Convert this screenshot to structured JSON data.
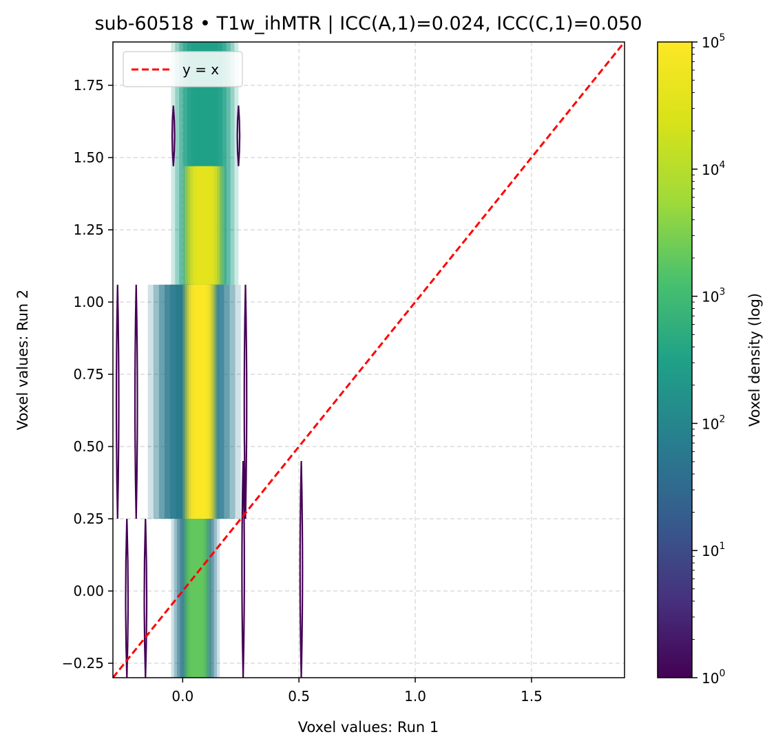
{
  "chart_data": {
    "type": "heatmap",
    "title": "sub-60518 • T1w_ihMTR | ICC(A,1)=0.024, ICC(C,1)=0.050",
    "xlabel": "Voxel values: Run 1",
    "ylabel": "Voxel values: Run 2",
    "xlim": [
      -0.3,
      1.9
    ],
    "ylim": [
      -0.3,
      1.9
    ],
    "x_ticks": [
      0.0,
      0.5,
      1.0,
      1.5
    ],
    "x_tick_labels": [
      "0.0",
      "0.5",
      "1.0",
      "1.5"
    ],
    "y_ticks": [
      -0.25,
      0.0,
      0.25,
      0.5,
      0.75,
      1.0,
      1.25,
      1.5,
      1.75
    ],
    "y_tick_labels": [
      "−0.25",
      "0.00",
      "0.25",
      "0.50",
      "0.75",
      "1.00",
      "1.25",
      "1.50",
      "1.75"
    ],
    "grid": true,
    "reference_line": {
      "label": "y = x",
      "color": "#ff0000",
      "style": "dashed"
    },
    "legend": {
      "placement": "top-left",
      "entries": [
        "y = x"
      ]
    },
    "colorbar": {
      "label": "Voxel density (log)",
      "scale": "log",
      "range": [
        1,
        100000
      ],
      "ticks": [
        {
          "base": "10",
          "exp": "0"
        },
        {
          "base": "10",
          "exp": "1"
        },
        {
          "base": "10",
          "exp": "2"
        },
        {
          "base": "10",
          "exp": "3"
        },
        {
          "base": "10",
          "exp": "4"
        },
        {
          "base": "10",
          "exp": "5"
        }
      ],
      "colormap": "viridis"
    },
    "density_bands": [
      {
        "x": [
          -0.05,
          0.24
        ],
        "y": [
          1.06,
          1.9
        ],
        "density": 300
      },
      {
        "x": [
          0.0,
          0.18
        ],
        "y": [
          1.06,
          1.47
        ],
        "density": 40000
      },
      {
        "x": [
          -0.15,
          0.25
        ],
        "y": [
          0.25,
          1.06
        ],
        "density": 60
      },
      {
        "x": [
          0.0,
          0.15
        ],
        "y": [
          0.25,
          1.06
        ],
        "density": 90000
      },
      {
        "x": [
          -0.05,
          0.16
        ],
        "y": [
          -0.3,
          0.25
        ],
        "density": 50
      },
      {
        "x": [
          0.0,
          0.12
        ],
        "y": [
          -0.3,
          0.25
        ],
        "density": 2000
      }
    ],
    "outlier_spikes": [
      {
        "x": -0.28,
        "y": [
          0.25,
          1.06
        ],
        "density": 1
      },
      {
        "x": -0.24,
        "y": [
          -0.3,
          0.25
        ],
        "density": 1
      },
      {
        "x": -0.2,
        "y": [
          0.25,
          1.06
        ],
        "density": 1
      },
      {
        "x": -0.16,
        "y": [
          -0.3,
          0.25
        ],
        "density": 1
      },
      {
        "x": 0.27,
        "y": [
          0.25,
          1.06
        ],
        "density": 1
      },
      {
        "x": 0.26,
        "y": [
          -0.3,
          0.45
        ],
        "density": 1
      },
      {
        "x": 0.51,
        "y": [
          -0.3,
          0.45
        ],
        "density": 1
      },
      {
        "x": -0.04,
        "y": [
          1.47,
          1.68
        ],
        "density": 1
      },
      {
        "x": 0.24,
        "y": [
          1.47,
          1.68
        ],
        "density": 1
      }
    ],
    "colors": {
      "reference_line": "#ff0000",
      "grid": "#d3d3d3"
    }
  }
}
